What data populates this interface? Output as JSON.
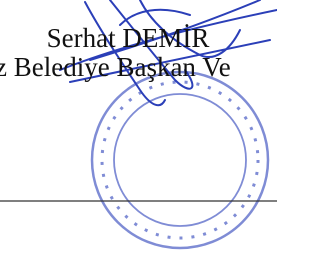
{
  "signature": {
    "name": "Serhat DEMİR",
    "title": "z Belediye Başkan Ve"
  }
}
